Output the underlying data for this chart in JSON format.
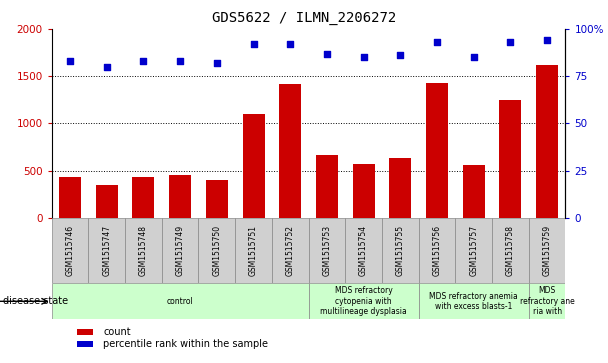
{
  "title": "GDS5622 / ILMN_2206272",
  "samples": [
    "GSM1515746",
    "GSM1515747",
    "GSM1515748",
    "GSM1515749",
    "GSM1515750",
    "GSM1515751",
    "GSM1515752",
    "GSM1515753",
    "GSM1515754",
    "GSM1515755",
    "GSM1515756",
    "GSM1515757",
    "GSM1515758",
    "GSM1515759"
  ],
  "counts": [
    430,
    350,
    430,
    450,
    400,
    1100,
    1420,
    670,
    570,
    630,
    1430,
    560,
    1250,
    1620
  ],
  "percentiles": [
    83,
    80,
    83,
    83,
    82,
    92,
    92,
    87,
    85,
    86,
    93,
    85,
    93,
    94
  ],
  "bar_color": "#cc0000",
  "dot_color": "#0000cc",
  "ylim_left": [
    0,
    2000
  ],
  "ylim_right": [
    0,
    100
  ],
  "yticks_left": [
    0,
    500,
    1000,
    1500,
    2000
  ],
  "ytick_labels_right": [
    "0",
    "25",
    "50",
    "75",
    "100%"
  ],
  "yticks_right": [
    0,
    25,
    50,
    75,
    100
  ],
  "disease_groups": [
    {
      "label": "control",
      "start": 0,
      "end": 7,
      "color": "#ccffcc"
    },
    {
      "label": "MDS refractory\ncytopenia with\nmultilineage dysplasia",
      "start": 7,
      "end": 10,
      "color": "#ccffcc"
    },
    {
      "label": "MDS refractory anemia\nwith excess blasts-1",
      "start": 10,
      "end": 13,
      "color": "#ccffcc"
    },
    {
      "label": "MDS\nrefractory ane\nria with",
      "start": 13,
      "end": 14,
      "color": "#ccffcc"
    }
  ],
  "tick_color_left": "#cc0000",
  "tick_color_right": "#0000cc",
  "sample_box_color": "#d0d0d0",
  "legend_items": [
    {
      "label": "count",
      "color": "#cc0000"
    },
    {
      "label": "percentile rank within the sample",
      "color": "#0000cc"
    }
  ]
}
